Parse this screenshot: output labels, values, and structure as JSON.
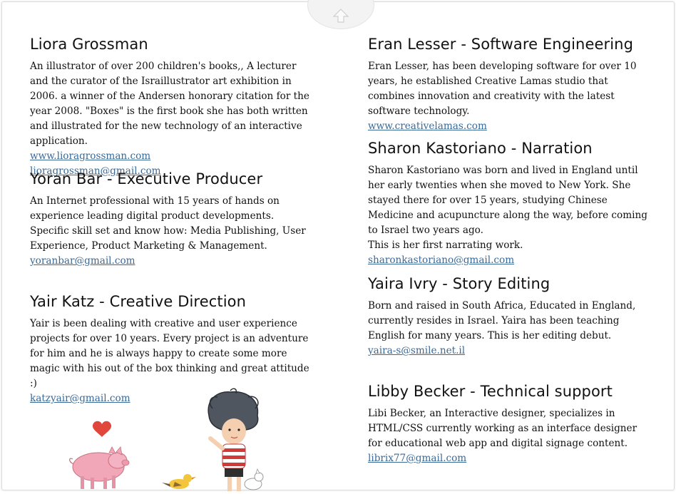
{
  "left_column": [
    {
      "name": "Liora Grossman",
      "bio": "An illustrator of over 200 children's books,, A lecturer and the curator of the Israillustrator art exhibition in 2006. a winner of the Andersen honorary citation for the year 2008. \"Boxes\" is the first book she has both written and illustrated for the new technology of an interactive application.",
      "links": [
        "www.lioragrossman.com",
        "lioragrossman@gmail.com"
      ]
    },
    {
      "name": "Yoran Bar - Executive Producer",
      "bio": "An Internet professional with 15 years of hands on experience leading digital product developments.\nSpecific skill set and know how: Media Publishing, User Experience, Product Marketing & Management.",
      "links": [
        "yoranbar@gmail.com"
      ]
    },
    {
      "name": "Yair Katz  - Creative Direction",
      "bio": "Yair is been dealing with creative and user experience projects for over 10 years. Every project is an adventure for him and he is always happy to create some more magic with his out of the box thinking and great attitude :)",
      "links": [
        "katzyair@gmail.com"
      ]
    }
  ],
  "right_column": [
    {
      "name": "Eran Lesser - Software Engineering",
      "bio": " Eran Lesser, has been developing software for over 10 years, he established Creative Lamas studio that combines innovation and creativity with the latest software technology.",
      "links": [
        "www.creativelamas.com"
      ]
    },
    {
      "name": "Sharon Kastoriano - Narration",
      "bio": " Sharon Kastoriano was born and lived in England until her early twenties when she moved to New York. She stayed there for over 15 years, studying Chinese Medicine and acupuncture along the way, before coming to Israel two years ago.\nThis is her first narrating work.",
      "links": [
        "sharonkastoriano@gmail.com"
      ]
    },
    {
      "name": "Yaira Ivry - Story Editing",
      "bio": "Born and raised in South Africa, Educated in England, currently resides in Israel. Yaira has been teaching English for many years. This is her editing debut.",
      "links": [
        "yaira-s@smile.net.il"
      ]
    },
    {
      "name": "Libby Becker - Technical support",
      "bio": "Libi Becker, an Interactive designer, specializes in HTML/CSS currently working as an interface designer for educational web app and digital signage content.",
      "links": [
        "librix77@gmail.com"
      ]
    }
  ],
  "colors": {
    "link": "#3a6a98",
    "text": "#111111",
    "pig": "#f2a7b8",
    "heart": "#e0463b",
    "bird": "#f2c53b"
  },
  "icons": [
    "up-arrow-icon",
    "heart-icon",
    "pig-illustration",
    "bird-illustration",
    "child-illustration",
    "dog-illustration"
  ]
}
